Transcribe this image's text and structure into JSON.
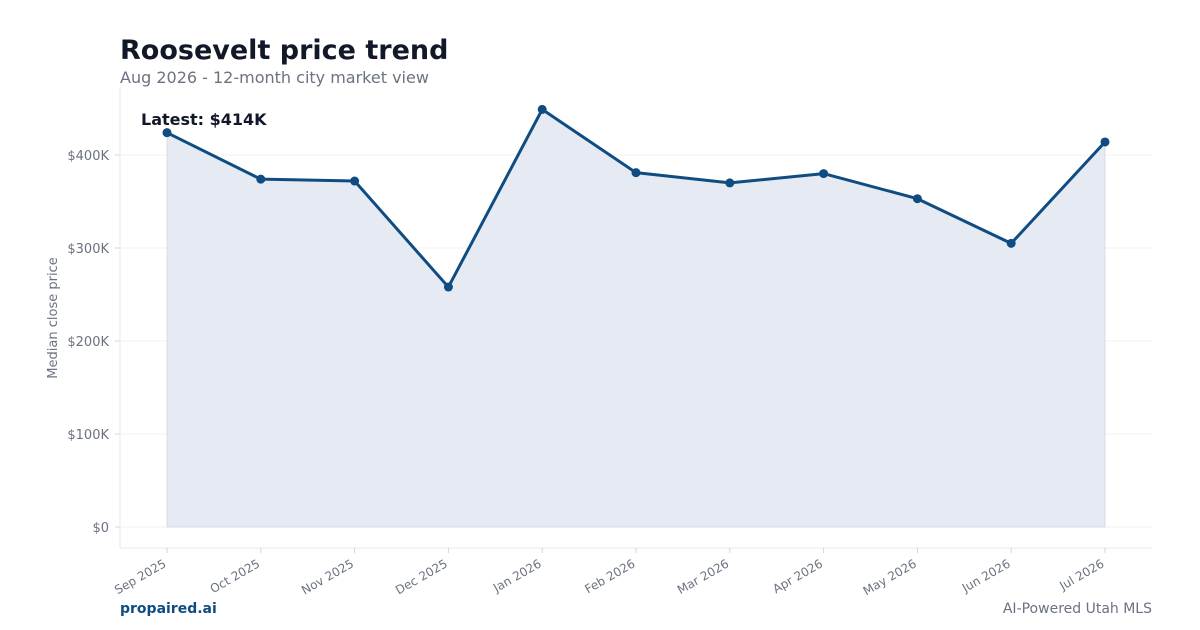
{
  "header": {
    "title": "Roosevelt price trend",
    "subtitle": "Aug 2026 - 12-month city market view"
  },
  "footer": {
    "brand": "propaired.ai",
    "note": "AI-Powered Utah MLS"
  },
  "colors": {
    "line": "#0f4c81",
    "area_fill": "#e6ebf3",
    "grid": "#f0f0f0",
    "axis": "#e5e7eb",
    "tick_text": "#6b7280"
  },
  "chart_data": {
    "type": "line",
    "title": "Roosevelt price trend",
    "subtitle": "Aug 2026 - 12-month city market view",
    "xlabel": "",
    "ylabel": "Median close price",
    "categories": [
      "Sep 2025",
      "Oct 2025",
      "Nov 2025",
      "Dec 2025",
      "Jan 2026",
      "Feb 2026",
      "Mar 2026",
      "Apr 2026",
      "May 2026",
      "Jun 2026",
      "Jul 2026"
    ],
    "series": [
      {
        "values": [
          424000,
          374000,
          372000,
          258000,
          449000,
          381000,
          370000,
          380000,
          353000,
          305000,
          414000
        ]
      }
    ],
    "ylim": [
      0,
      472000
    ],
    "yticks": [
      0,
      100000,
      200000,
      300000,
      400000
    ],
    "ytick_labels": [
      "$0",
      "$100K",
      "$200K",
      "$300K",
      "$400K"
    ],
    "annotation": "Latest: $414K",
    "grid": "horizontal",
    "area_fill": true,
    "legend": "none"
  }
}
